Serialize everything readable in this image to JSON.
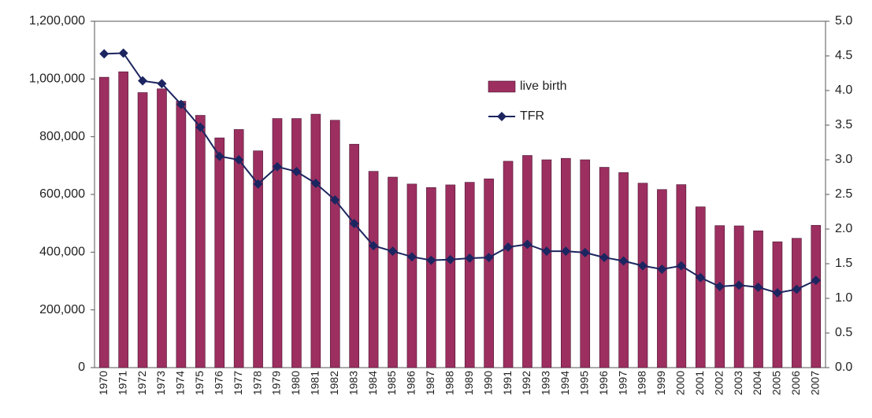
{
  "chart_data": {
    "type": "bar-line",
    "categories": [
      "1970",
      "1971",
      "1972",
      "1973",
      "1974",
      "1975",
      "1976",
      "1977",
      "1978",
      "1979",
      "1980",
      "1981",
      "1982",
      "1983",
      "1984",
      "1985",
      "1986",
      "1987",
      "1988",
      "1989",
      "1990",
      "1991",
      "1992",
      "1993",
      "1994",
      "1995",
      "1996",
      "1997",
      "1998",
      "1999",
      "2000",
      "2001",
      "2002",
      "2003",
      "2004",
      "2005",
      "2006",
      "2007"
    ],
    "series": [
      {
        "name": "live birth",
        "type": "bar",
        "color": "#9c2f60",
        "values": [
          1006000,
          1025000,
          953000,
          966000,
          923000,
          874000,
          796000,
          825000,
          751000,
          863000,
          863000,
          878000,
          857000,
          774000,
          680000,
          660000,
          636000,
          624000,
          633000,
          642000,
          654000,
          715000,
          735000,
          720000,
          725000,
          720000,
          694000,
          676000,
          639000,
          617000,
          634000,
          557000,
          492000,
          491000,
          474000,
          436000,
          448000,
          493000
        ]
      },
      {
        "name": "TFR",
        "type": "line",
        "axis": "y2",
        "color": "#1c2560",
        "values": [
          4.53,
          4.54,
          4.14,
          4.1,
          3.8,
          3.47,
          3.05,
          3.0,
          2.65,
          2.9,
          2.83,
          2.66,
          2.42,
          2.08,
          1.76,
          1.68,
          1.6,
          1.55,
          1.56,
          1.58,
          1.59,
          1.74,
          1.78,
          1.68,
          1.68,
          1.66,
          1.59,
          1.54,
          1.47,
          1.42,
          1.47,
          1.3,
          1.17,
          1.19,
          1.16,
          1.08,
          1.13,
          1.26
        ]
      }
    ],
    "ylim": [
      0,
      1200000
    ],
    "yticks": [
      0,
      {
        "value": 200000,
        "label": "200,000"
      },
      {
        "value": 400000,
        "label": "400,000"
      },
      {
        "value": 600000,
        "label": "600,000"
      },
      {
        "value": 800000,
        "label": "800,000"
      },
      {
        "value": 1000000,
        "label": "1,000,000"
      },
      {
        "value": 1200000,
        "label": "1,200,000"
      }
    ],
    "y2lim": [
      0,
      5
    ],
    "y2ticks": [
      {
        "value": 0,
        "label": "0.0"
      },
      0.5,
      {
        "value": 1,
        "label": "1.0"
      },
      1.5,
      {
        "value": 2,
        "label": "2.0"
      },
      2.5,
      {
        "value": 3,
        "label": "3.0"
      },
      3.5,
      {
        "value": 4,
        "label": "4.0"
      },
      4.5,
      {
        "value": 5,
        "label": "5.0"
      }
    ],
    "legend": "upper center"
  }
}
